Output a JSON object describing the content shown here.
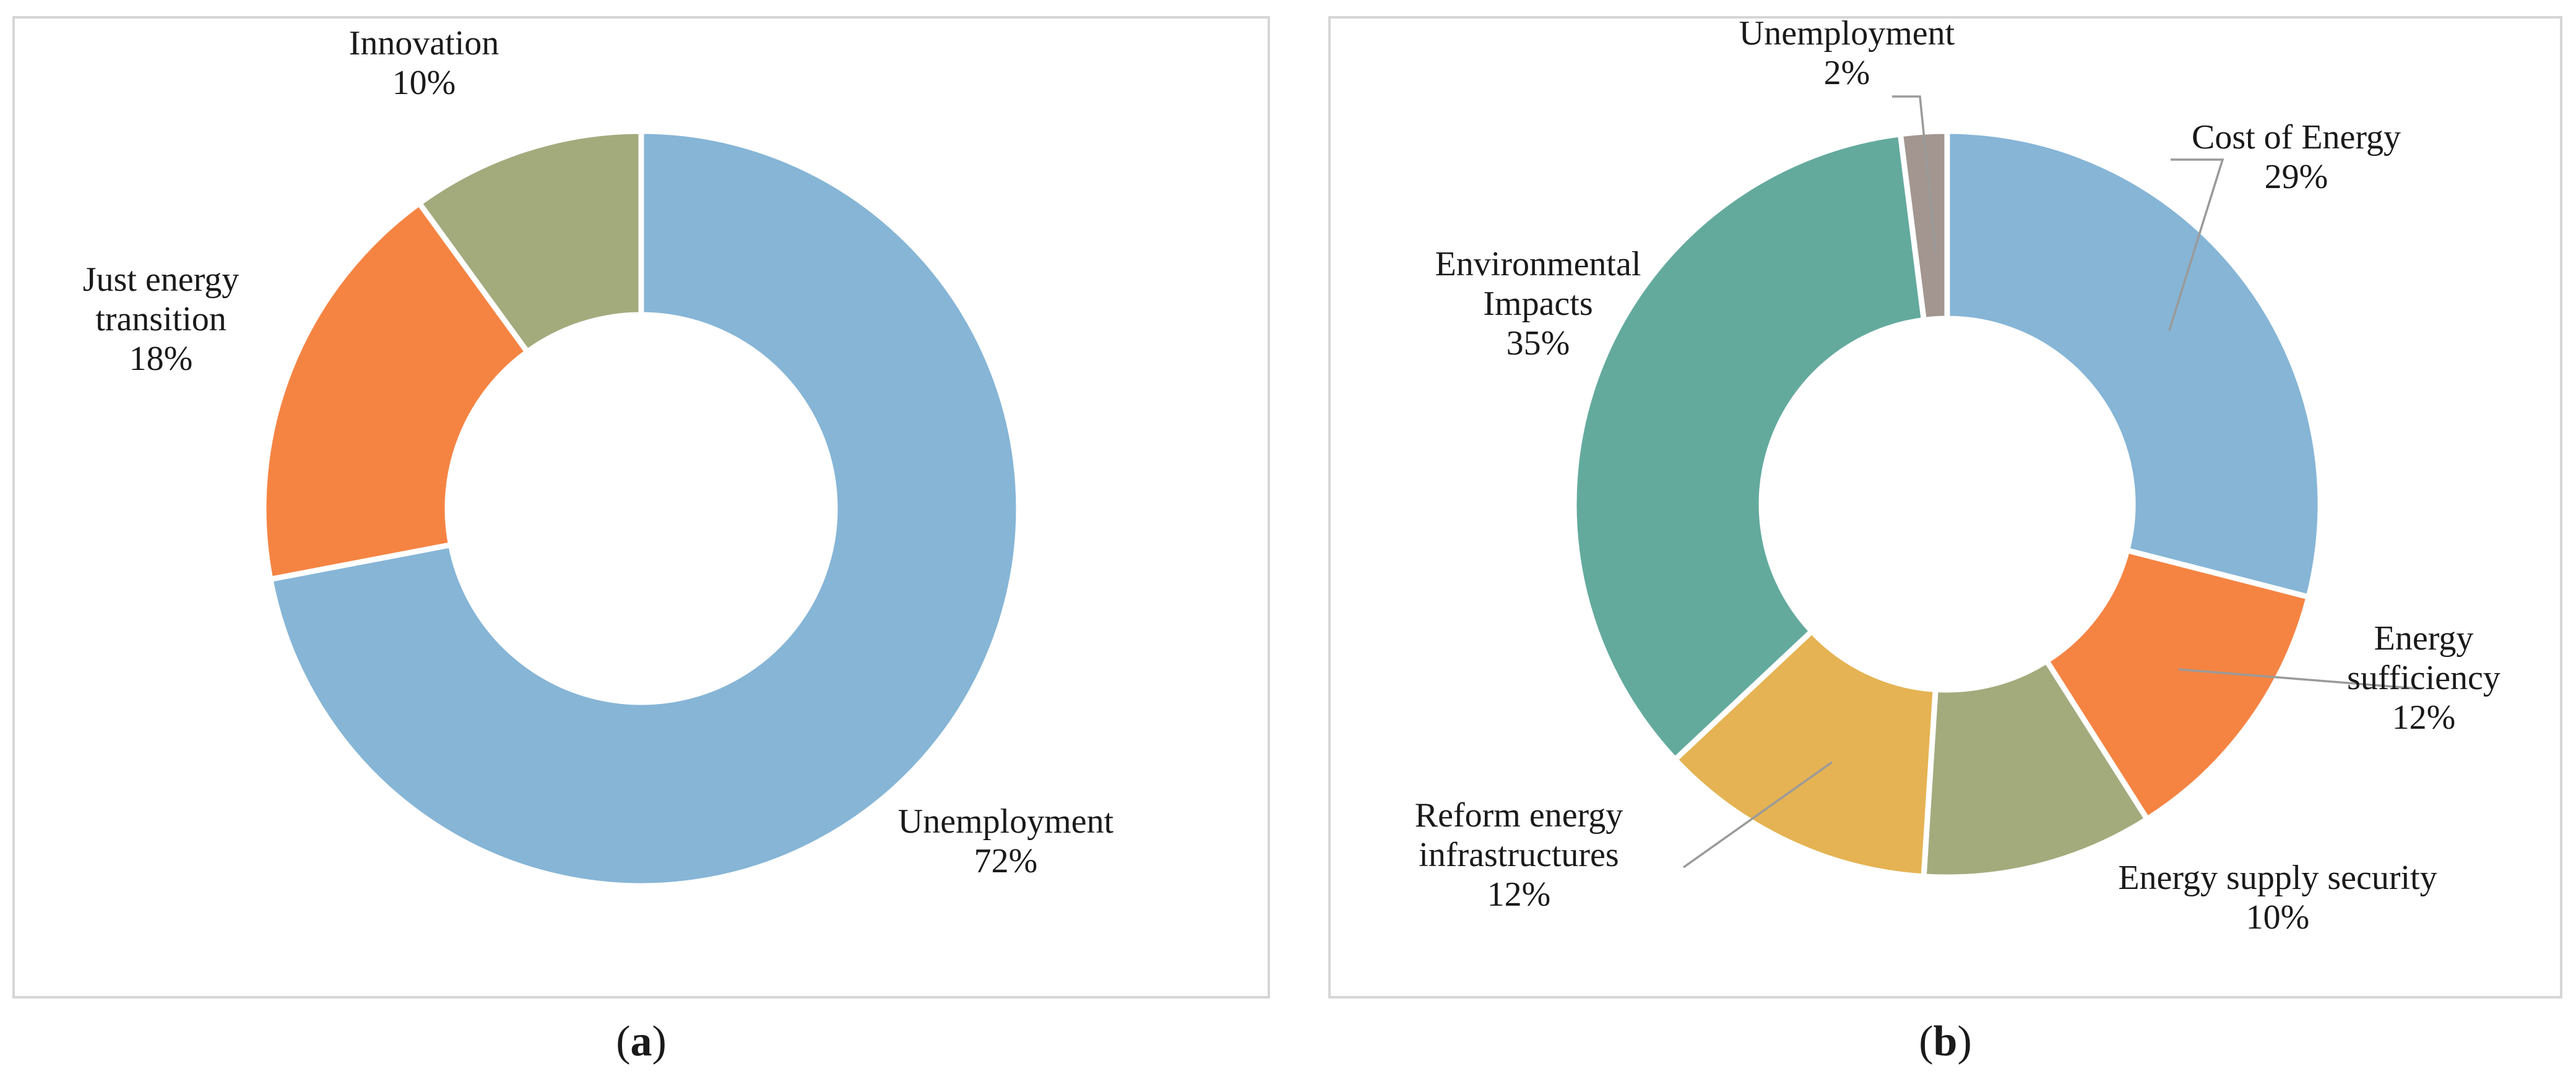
{
  "colors": {
    "blue": "#86b5d6",
    "orange": "#f58443",
    "olive": "#a3ab7d",
    "yellow": "#e5b353",
    "teal": "#63aa9d",
    "grey": "#a39690"
  },
  "chart_data": [
    {
      "type": "pie",
      "subtype": "donut",
      "caption": {
        "open": "(",
        "letter": "a",
        "close": ")"
      },
      "slices": [
        {
          "label": [
            "Unemployment"
          ],
          "value": 72,
          "display": "72%",
          "color": "#86b5d6"
        },
        {
          "label": [
            "Just energy",
            "transition"
          ],
          "value": 18,
          "display": "18%",
          "color": "#f58443"
        },
        {
          "label": [
            "Innovation"
          ],
          "value": 10,
          "display": "10%",
          "color": "#a3ab7d"
        }
      ]
    },
    {
      "type": "pie",
      "subtype": "donut",
      "caption": {
        "open": "(",
        "letter": "b",
        "close": ")"
      },
      "slices": [
        {
          "label": [
            "Cost of Energy"
          ],
          "value": 29,
          "display": "29%",
          "color": "#86b5d6"
        },
        {
          "label": [
            "Energy",
            "sufficiency"
          ],
          "value": 12,
          "display": "12%",
          "color": "#f58443"
        },
        {
          "label": [
            "Energy supply security"
          ],
          "value": 10,
          "display": "10%",
          "color": "#a3ab7d"
        },
        {
          "label": [
            "Reform energy",
            "infrastructures"
          ],
          "value": 12,
          "display": "12%",
          "color": "#e5b353"
        },
        {
          "label": [
            "Environmental",
            "Impacts"
          ],
          "value": 35,
          "display": "35%",
          "color": "#63aa9d"
        },
        {
          "label": [
            "Unemployment"
          ],
          "value": 2,
          "display": "2%",
          "color": "#a39690"
        }
      ]
    }
  ]
}
